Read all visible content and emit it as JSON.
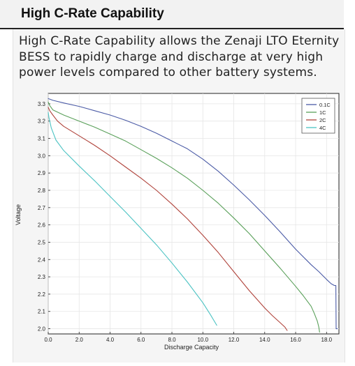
{
  "section": {
    "title": "High C-Rate Capability",
    "description": "High C-Rate Capability allows the Zenaji LTO Eternity BESS to rapidly charge and discharge at very high power levels compared to other battery systems."
  },
  "chart_data": {
    "type": "line",
    "xlabel": "Discharge Capacity",
    "ylabel": "Voltage",
    "xlim": [
      0,
      18.8
    ],
    "ylim": [
      1.97,
      3.36
    ],
    "xticks": [
      "0.0",
      "2.0",
      "4.0",
      "6.0",
      "8.0",
      "10.0",
      "12.0",
      "14.0",
      "16.0",
      "18.0"
    ],
    "yticks": [
      "2.0",
      "2.1",
      "2.2",
      "2.3",
      "2.4",
      "2.5",
      "2.6",
      "2.7",
      "2.8",
      "2.9",
      "3.0",
      "3.1",
      "3.2",
      "3.3"
    ],
    "grid": true,
    "legend_position": "top-right",
    "series": [
      {
        "name": "0.1C",
        "color": "#4b5ba6",
        "x": [
          0.0,
          0.3,
          1.0,
          2.0,
          3.0,
          4.0,
          5.0,
          6.0,
          7.0,
          8.0,
          9.0,
          10.0,
          11.0,
          12.0,
          13.0,
          14.0,
          15.0,
          16.0,
          17.0,
          17.5,
          18.0,
          18.3,
          18.5,
          18.6,
          18.62,
          18.7
        ],
        "y": [
          3.33,
          3.32,
          3.305,
          3.285,
          3.26,
          3.235,
          3.205,
          3.17,
          3.13,
          3.085,
          3.04,
          2.98,
          2.91,
          2.83,
          2.745,
          2.655,
          2.56,
          2.46,
          2.37,
          2.33,
          2.285,
          2.26,
          2.25,
          2.25,
          2.0,
          2.0
        ]
      },
      {
        "name": "1C",
        "color": "#5aa05a",
        "x": [
          0.0,
          0.1,
          0.3,
          1.0,
          2.0,
          3.0,
          4.0,
          5.0,
          6.0,
          7.0,
          8.0,
          9.0,
          10.0,
          11.0,
          12.0,
          13.0,
          14.0,
          15.0,
          16.0,
          16.5,
          17.0,
          17.2,
          17.4,
          17.5,
          17.55
        ],
        "y": [
          3.31,
          3.29,
          3.265,
          3.235,
          3.2,
          3.165,
          3.125,
          3.085,
          3.035,
          2.985,
          2.93,
          2.87,
          2.8,
          2.725,
          2.64,
          2.55,
          2.45,
          2.35,
          2.245,
          2.19,
          2.13,
          2.09,
          2.045,
          2.01,
          1.98
        ]
      },
      {
        "name": "2C",
        "color": "#b0433b",
        "x": [
          0.0,
          0.1,
          0.3,
          0.6,
          1.0,
          2.0,
          3.0,
          4.0,
          5.0,
          6.0,
          7.0,
          8.0,
          9.0,
          10.0,
          11.0,
          12.0,
          13.0,
          14.0,
          14.5,
          15.0,
          15.3,
          15.45
        ],
        "y": [
          3.28,
          3.26,
          3.235,
          3.2,
          3.17,
          3.115,
          3.06,
          3.0,
          2.935,
          2.87,
          2.8,
          2.72,
          2.635,
          2.54,
          2.44,
          2.33,
          2.22,
          2.12,
          2.075,
          2.035,
          2.01,
          1.99
        ]
      },
      {
        "name": "4C",
        "color": "#4cc3c3",
        "x": [
          0.0,
          0.05,
          0.2,
          0.5,
          1.0,
          2.0,
          3.0,
          4.0,
          5.0,
          6.0,
          7.0,
          8.0,
          9.0,
          10.0,
          10.5,
          10.9
        ],
        "y": [
          3.25,
          3.22,
          3.16,
          3.09,
          3.03,
          2.94,
          2.855,
          2.765,
          2.675,
          2.58,
          2.485,
          2.38,
          2.27,
          2.15,
          2.08,
          2.02
        ]
      }
    ]
  }
}
